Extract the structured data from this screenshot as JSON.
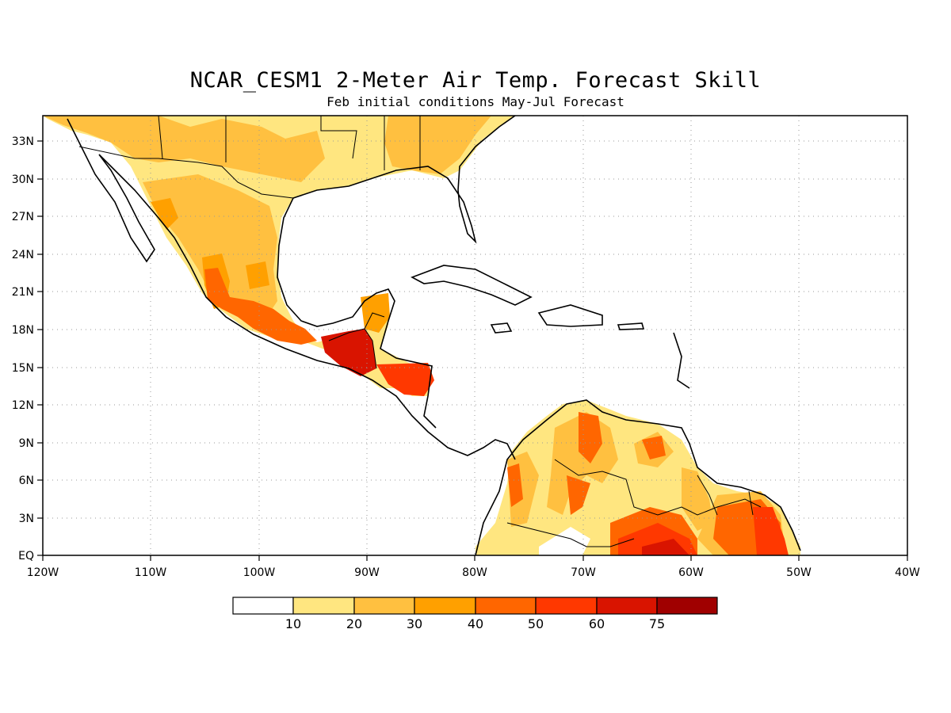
{
  "title": "NCAR_CESM1 2-Meter Air Temp. Forecast Skill",
  "subtitle": "Feb initial conditions   May-Jul Forecast",
  "map": {
    "lon_range": [
      -120,
      -40
    ],
    "lat_range": [
      0,
      35
    ],
    "lon_ticks": [
      "120W",
      "110W",
      "100W",
      "90W",
      "80W",
      "70W",
      "60W",
      "50W",
      "40W"
    ],
    "lat_ticks": [
      "EQ",
      "3N",
      "6N",
      "9N",
      "12N",
      "15N",
      "18N",
      "21N",
      "24N",
      "27N",
      "30N",
      "33N"
    ],
    "grid": "dotted"
  },
  "colorbar": {
    "labels": [
      "10",
      "20",
      "30",
      "40",
      "50",
      "60",
      "75"
    ],
    "colors": [
      "#ffffff",
      "#ffe680",
      "#ffc040",
      "#ffa000",
      "#ff6600",
      "#ff3800",
      "#d91400",
      "#a00000"
    ]
  }
}
